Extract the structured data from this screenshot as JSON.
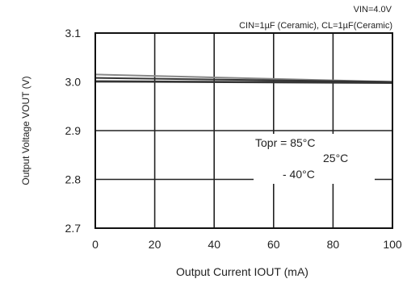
{
  "chart_data": {
    "type": "line",
    "title": "",
    "conditions": {
      "vin": "VIN=4.0V",
      "caps": "CIN=1µF (Ceramic), CL=1µF(Ceramic)"
    },
    "xlabel": "Output Current IOUT (mA)",
    "ylabel": "Output Voltage VOUT (V)",
    "xlim": [
      0,
      100
    ],
    "ylim": [
      2.7,
      3.1
    ],
    "x_ticks": [
      0,
      20,
      40,
      60,
      80,
      100
    ],
    "x_tick_labels": [
      "0",
      "20",
      "40",
      "60",
      "80",
      "100"
    ],
    "y_ticks": [
      2.7,
      2.8,
      2.9,
      3.0,
      3.1
    ],
    "y_tick_labels": [
      "2.7",
      "2.8",
      "2.9",
      "3.0",
      "3.1"
    ],
    "grid": true,
    "legend": {
      "placement": "right-middle",
      "title": "Topr = 85°C",
      "entries": [
        "25°C",
        "- 40°C"
      ]
    },
    "series": [
      {
        "name": "85°C",
        "x": [
          0,
          100
        ],
        "y": [
          3.015,
          3.0
        ]
      },
      {
        "name": "25°C",
        "x": [
          0,
          100
        ],
        "y": [
          3.008,
          3.0
        ]
      },
      {
        "name": "-40°C",
        "x": [
          0,
          100
        ],
        "y": [
          3.001,
          2.998
        ]
      }
    ],
    "colors": {
      "axis": "#111111",
      "grid": "#222222",
      "line": "#333333",
      "line_light": "#888888"
    }
  }
}
